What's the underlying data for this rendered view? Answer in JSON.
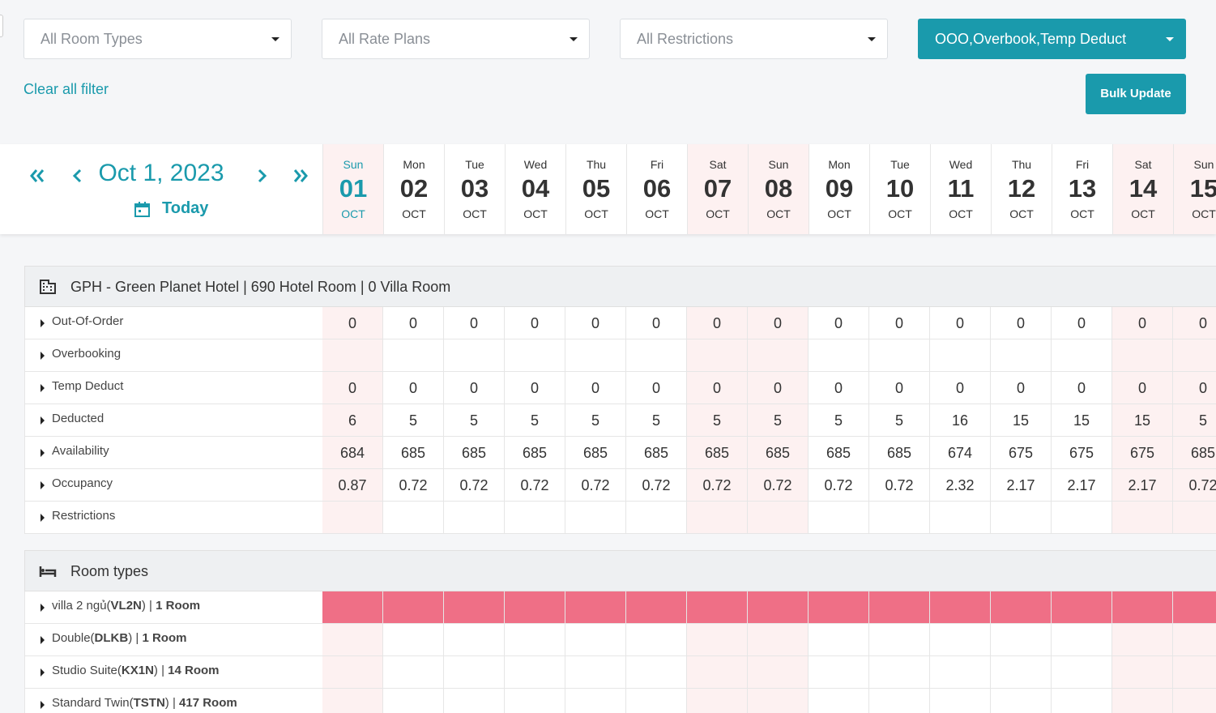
{
  "filters": [
    "All Room Types",
    "All Rate Plans",
    "All Restrictions",
    "OOO,Overbook,Temp Deduct"
  ],
  "clear_filter": "Clear all filter",
  "bulk_update": "Bulk Update",
  "date_nav": {
    "date": "Oct 1, 2023",
    "today": "Today"
  },
  "days": [
    {
      "weekday": "Sun",
      "day": "01",
      "month": "OCT",
      "weekend": true,
      "today": true
    },
    {
      "weekday": "Mon",
      "day": "02",
      "month": "OCT"
    },
    {
      "weekday": "Tue",
      "day": "03",
      "month": "OCT"
    },
    {
      "weekday": "Wed",
      "day": "04",
      "month": "OCT"
    },
    {
      "weekday": "Thu",
      "day": "05",
      "month": "OCT"
    },
    {
      "weekday": "Fri",
      "day": "06",
      "month": "OCT"
    },
    {
      "weekday": "Sat",
      "day": "07",
      "month": "OCT",
      "weekend": true
    },
    {
      "weekday": "Sun",
      "day": "08",
      "month": "OCT",
      "weekend": true
    },
    {
      "weekday": "Mon",
      "day": "09",
      "month": "OCT"
    },
    {
      "weekday": "Tue",
      "day": "10",
      "month": "OCT"
    },
    {
      "weekday": "Wed",
      "day": "11",
      "month": "OCT"
    },
    {
      "weekday": "Thu",
      "day": "12",
      "month": "OCT"
    },
    {
      "weekday": "Fri",
      "day": "13",
      "month": "OCT"
    },
    {
      "weekday": "Sat",
      "day": "14",
      "month": "OCT",
      "weekend": true
    },
    {
      "weekday": "Sun",
      "day": "15",
      "month": "OCT",
      "weekend": true
    }
  ],
  "hotel": {
    "title": "GPH - Green Planet Hotel | 690 Hotel Room | 0 Villa Room",
    "rows": [
      {
        "label": "Out-Of-Order",
        "values": [
          0,
          0,
          0,
          0,
          0,
          0,
          0,
          0,
          0,
          0,
          0,
          0,
          0,
          0,
          0
        ]
      },
      {
        "label": "Overbooking"
      },
      {
        "label": "Temp Deduct",
        "values": [
          0,
          0,
          0,
          0,
          0,
          0,
          0,
          0,
          0,
          0,
          0,
          0,
          0,
          0,
          0
        ]
      },
      {
        "label": "Deducted",
        "values": [
          6,
          5,
          5,
          5,
          5,
          5,
          5,
          5,
          5,
          5,
          16,
          15,
          15,
          15,
          5
        ]
      },
      {
        "label": "Availability",
        "values": [
          684,
          685,
          685,
          685,
          685,
          685,
          685,
          685,
          685,
          685,
          674,
          675,
          675,
          675,
          685
        ]
      },
      {
        "label": "Occupancy",
        "values": [
          0.87,
          0.72,
          0.72,
          0.72,
          0.72,
          0.72,
          0.72,
          0.72,
          0.72,
          0.72,
          2.32,
          2.17,
          2.17,
          2.17,
          0.72
        ]
      },
      {
        "label": "Restrictions"
      }
    ]
  },
  "room_types": {
    "title": "Room types",
    "rows": [
      {
        "label": [
          "villa 2 ngủ(",
          "VL2N",
          ") | ",
          "1 Room"
        ],
        "closed": true
      },
      {
        "label": [
          "Double(",
          "DLKB",
          ") | ",
          "1 Room"
        ]
      },
      {
        "label": [
          "Studio Suite(",
          "KX1N",
          ") | ",
          "14 Room"
        ]
      },
      {
        "label": [
          "Standard Twin(",
          "TSTN",
          ") | ",
          "417 Room"
        ]
      }
    ]
  }
}
